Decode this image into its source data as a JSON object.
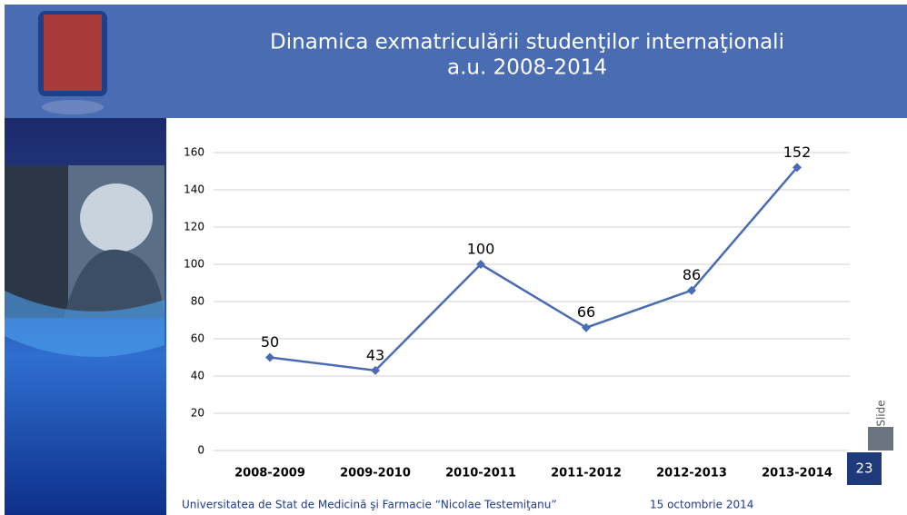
{
  "chart_data": {
    "type": "line",
    "title": "Dinamica exmatriculării studenţilor internaţionali",
    "subtitle": "a.u. 2008-2014",
    "categories": [
      "2008-2009",
      "2009-2010",
      "2010-2011",
      "2011-2012",
      "2012-2013",
      "2013-2014"
    ],
    "series": [
      {
        "color": "#4a6cb3",
        "values": [
          50,
          43,
          100,
          66,
          86,
          152
        ]
      }
    ],
    "ylim": [
      0,
      160
    ],
    "yticks": [
      0,
      20,
      40,
      60,
      80,
      100,
      120,
      140,
      160
    ],
    "grid": true,
    "data_labels": true
  },
  "footer": {
    "university": "Universitatea de Stat de Medicină şi Farmacie “Nicolae Testemiţanu”",
    "date": "15 octombrie 2014",
    "slide_label": "Slide",
    "slide_number": "23"
  }
}
